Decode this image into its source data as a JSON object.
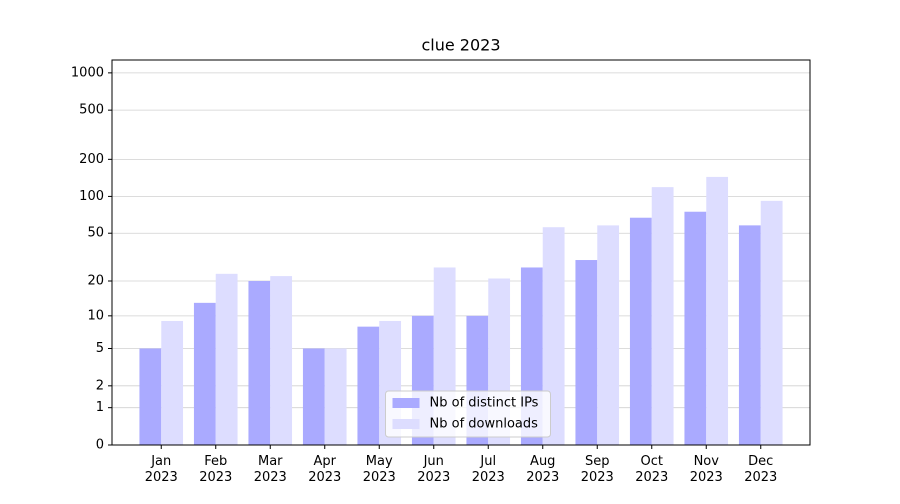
{
  "chart_data": {
    "type": "bar",
    "title": "clue 2023",
    "categories": [
      "Jan\n2023",
      "Feb\n2023",
      "Mar\n2023",
      "Apr\n2023",
      "May\n2023",
      "Jun\n2023",
      "Jul\n2023",
      "Aug\n2023",
      "Sep\n2023",
      "Oct\n2023",
      "Nov\n2023",
      "Dec\n2023"
    ],
    "series": [
      {
        "name": "Nb of distinct IPs",
        "color": "#aaaaff",
        "values": [
          5,
          13,
          20,
          5,
          8,
          10,
          10,
          26,
          30,
          67,
          75,
          58
        ]
      },
      {
        "name": "Nb of downloads",
        "color": "#ddddff",
        "values": [
          9,
          23,
          22,
          5,
          9,
          26,
          21,
          56,
          58,
          119,
          144,
          92
        ]
      }
    ],
    "yscale": "log(1+x)",
    "ylim": [
      0,
      1270
    ],
    "yticks": [
      0,
      1,
      2,
      5,
      10,
      20,
      50,
      100,
      200,
      500,
      1000
    ],
    "grid": true,
    "legend": "lower center"
  }
}
